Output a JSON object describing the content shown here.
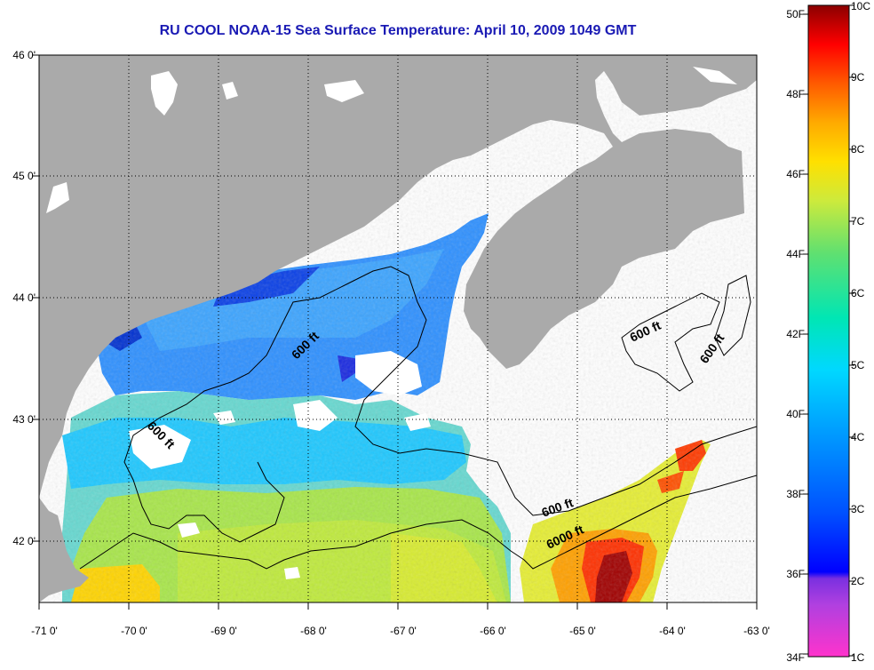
{
  "title": "RU COOL  NOAA-15  Sea Surface Temperature:  April 10, 2009 1049 GMT",
  "map": {
    "lon_range": [
      -71,
      -63
    ],
    "lat_range": [
      41.5,
      46
    ],
    "lat_ticks": [
      "46 0'",
      "45 0'",
      "44 0'",
      "43 0'",
      "42 0'"
    ],
    "lon_ticks": [
      "-71 0'",
      "-70 0'",
      "-69 0'",
      "-68 0'",
      "-67 0'",
      "-66 0'",
      "-65 0'",
      "-64 0'",
      "-63 0'"
    ],
    "colors": {
      "land": "#aaaaaa",
      "cloud": "#ffffff",
      "contour": "#000000"
    }
  },
  "contour_labels": [
    "600 ft",
    "600 ft",
    "600 ft",
    "600 ft",
    "600 ft",
    "6000 ft"
  ],
  "colorbar": {
    "fahrenheit": [
      "50F",
      "48F",
      "46F",
      "44F",
      "42F",
      "40F",
      "38F",
      "36F",
      "34F"
    ],
    "celsius": [
      "10C",
      "9C",
      "8C",
      "7C",
      "6C",
      "5C",
      "4C",
      "3C",
      "2C",
      "1C"
    ],
    "colors": [
      "#ff33cc",
      "#8a2be2",
      "#0000ff",
      "#0080ff",
      "#00ccff",
      "#00e0b0",
      "#7fe060",
      "#e6f03c",
      "#ffc000",
      "#ff6000",
      "#ff0000",
      "#8b0000"
    ]
  }
}
